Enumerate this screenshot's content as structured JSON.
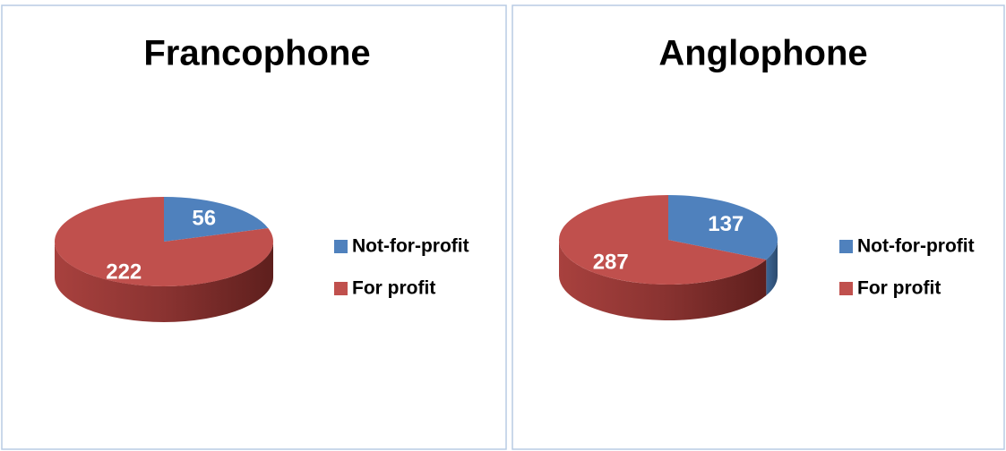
{
  "chart_data": [
    {
      "type": "pie",
      "title": "Francophone",
      "categories": [
        "Not-for-profit",
        "For profit"
      ],
      "values": [
        56,
        222
      ],
      "colors": [
        "#4f81bd",
        "#c0504d"
      ],
      "legend": "right"
    },
    {
      "type": "pie",
      "title": "Anglophone",
      "categories": [
        "Not-for-profit",
        "For profit"
      ],
      "values": [
        137,
        287
      ],
      "colors": [
        "#4f81bd",
        "#c0504d"
      ],
      "legend": "right"
    }
  ]
}
